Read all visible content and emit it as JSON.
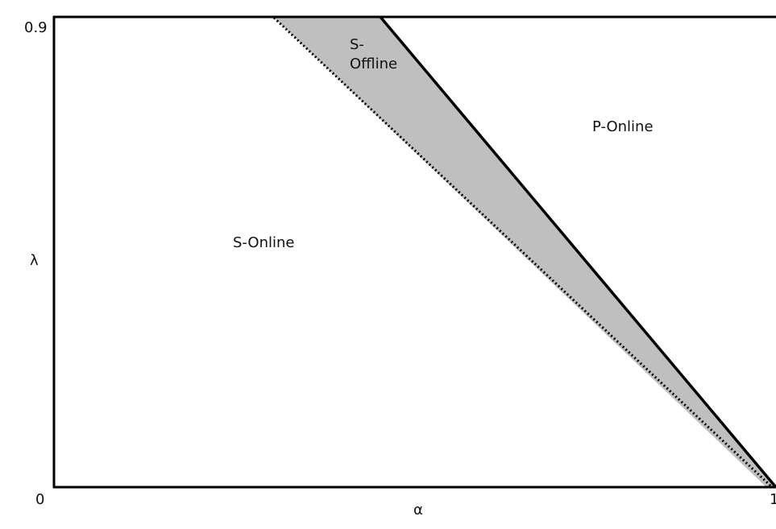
{
  "regions": {
    "s_online": "S-Online",
    "s_offline_line1": "S-",
    "s_offline_line2": "Offline",
    "p_online": "P-Online"
  },
  "axes": {
    "x_label": "α",
    "y_label": "λ",
    "y_tick_top": "0.9",
    "y_tick_bottom": "0",
    "x_tick_right": "1"
  },
  "colors": {
    "shaded_region": "#bfbfbf",
    "frame": "#000000",
    "background": "#ffffff"
  },
  "boundaries": {
    "solid_line": "boundary between S-Offline and P-Online",
    "dotted_line": "boundary between S-Online and S-Offline"
  }
}
